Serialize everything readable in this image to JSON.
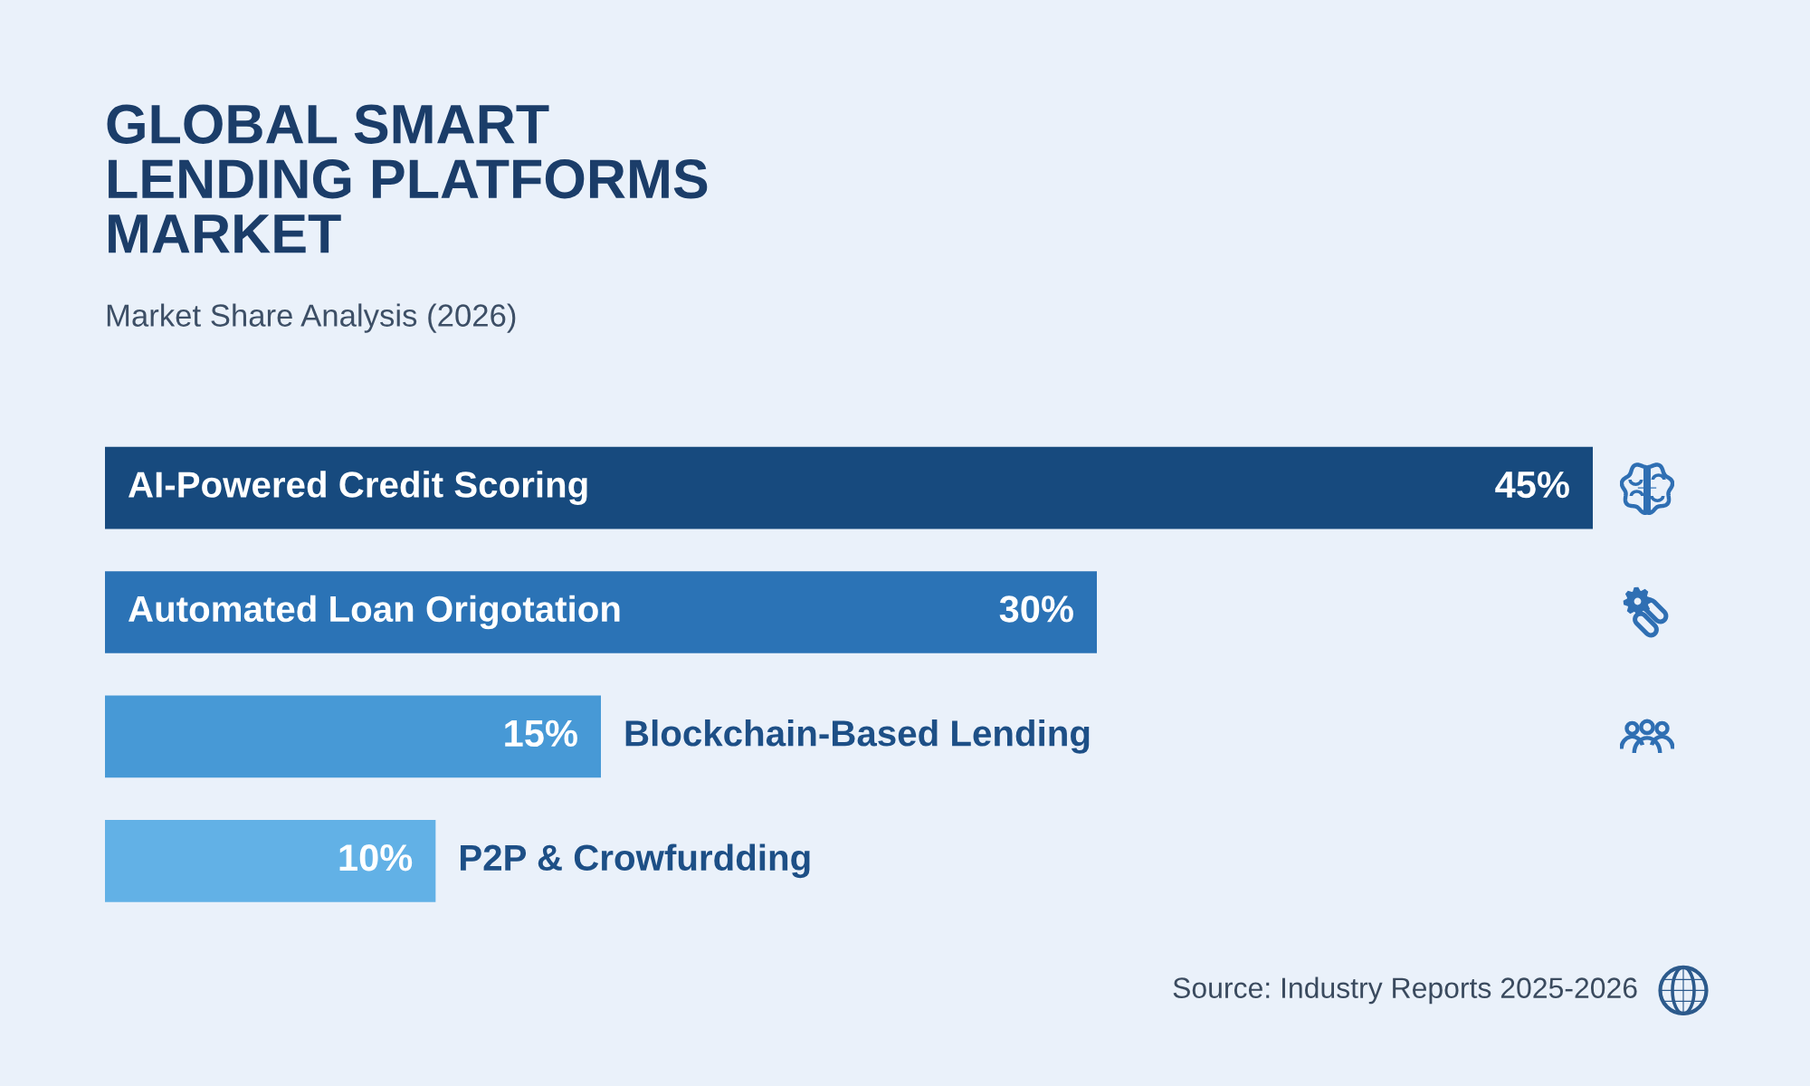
{
  "chart_data": {
    "type": "bar",
    "orientation": "horizontal",
    "title": "GLOBAL SMART\nLENDING PLATFORMS\nMARKET",
    "subtitle": "Market Share Analysis (2026)",
    "categories": [
      "AI-Powered Credit Scoring",
      "Automated Loan Origotation",
      "Blockchain-Based Lending",
      "P2P & Crowfurdding"
    ],
    "values": [
      45,
      30,
      15,
      10
    ],
    "colors": [
      "#174a7e",
      "#2b73b6",
      "#4799d6",
      "#62b1e6"
    ],
    "value_labels": [
      "45%",
      "30%",
      "15%",
      "10%"
    ],
    "annotations": [
      "Source: Industry Reports 2025-2026"
    ],
    "tick_labels": "y"
  }
}
